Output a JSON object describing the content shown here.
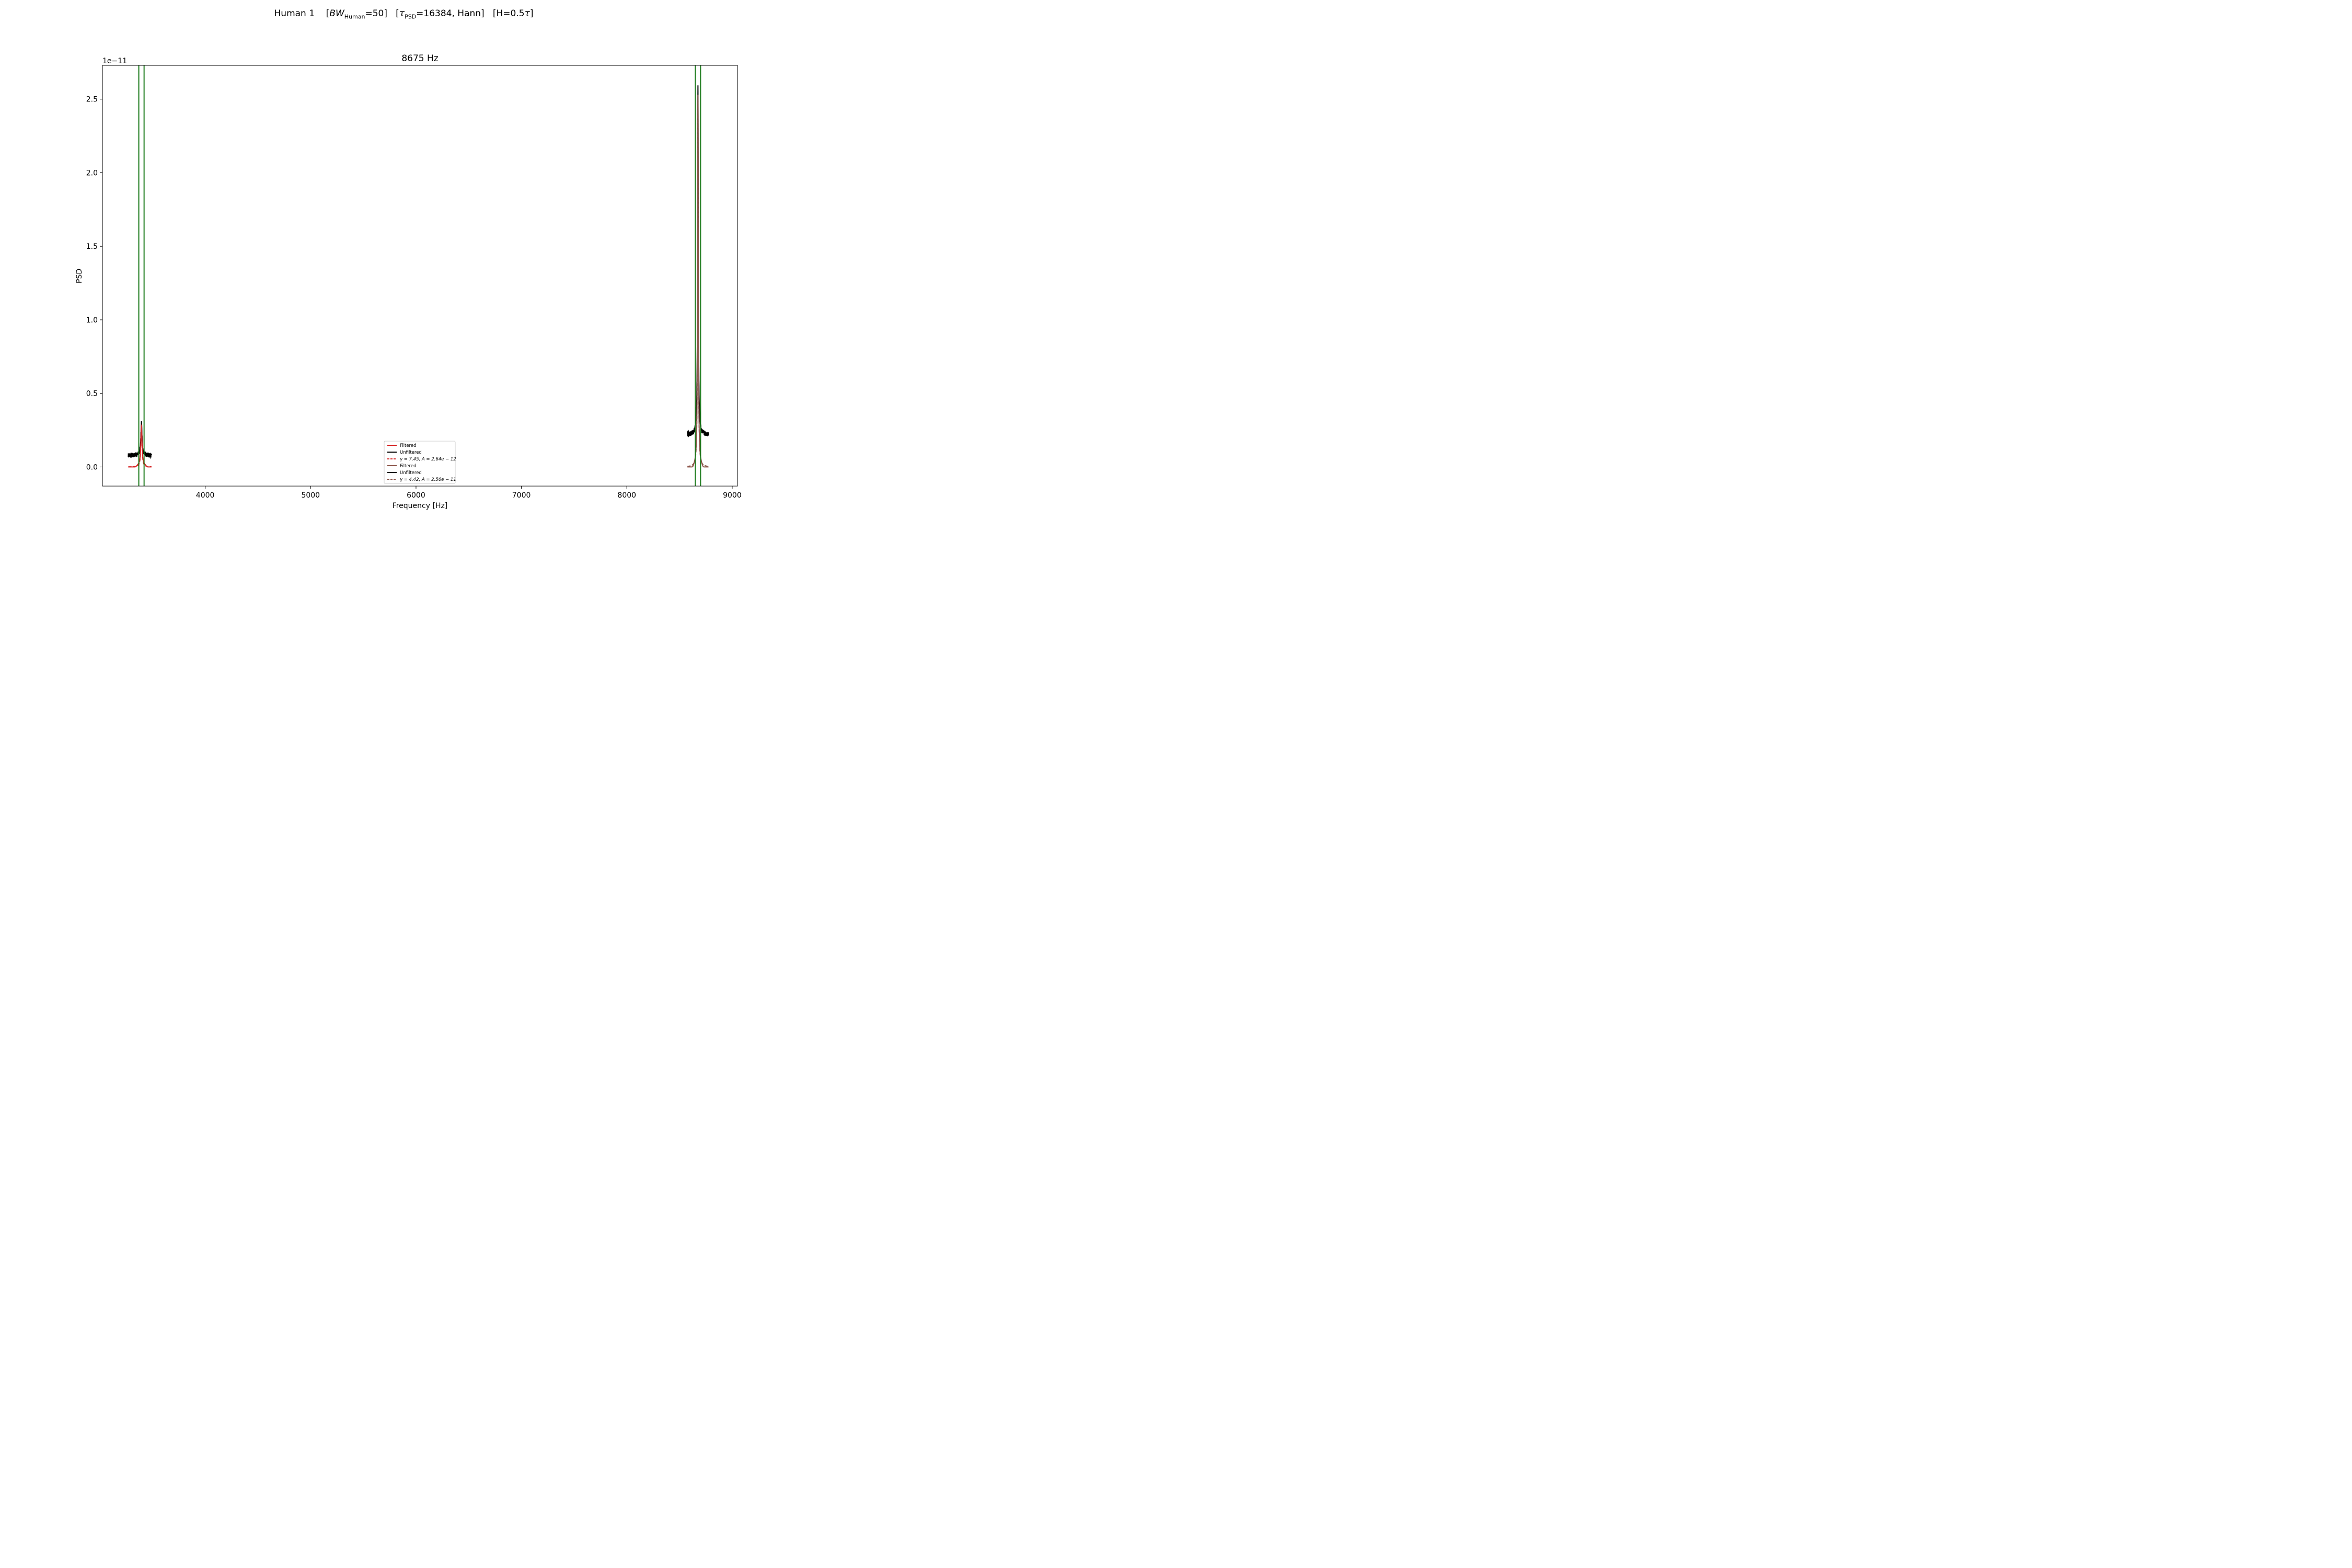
{
  "figure": {
    "suptitle": {
      "lead": "Human 1    [",
      "bw_symbol": "BW",
      "bw_sub": "Human",
      "bw_rest": "=50]   [",
      "tau_symbol": "τ",
      "tau_sub": "PSD",
      "tau_rest": "=16384, Hann]   [H=0.5",
      "tail_symbol": "τ",
      "tail_end": "]"
    }
  },
  "chart_data": {
    "type": "line",
    "title": "8675 Hz",
    "xlabel": "Frequency [Hz]",
    "ylabel": "PSD",
    "y_offset_label": "1e−11",
    "xlim": [
      3025,
      9050
    ],
    "ylim": [
      -0.13,
      2.73
    ],
    "y_scale": 1e-11,
    "xticks": [
      4000,
      5000,
      6000,
      7000,
      8000,
      9000
    ],
    "xtick_labels": [
      "4000",
      "5000",
      "6000",
      "7000",
      "8000",
      "9000"
    ],
    "yticks": [
      0.0,
      0.5,
      1.0,
      1.5,
      2.0,
      2.5
    ],
    "ytick_labels": [
      "0.0",
      "0.5",
      "1.0",
      "1.5",
      "2.0",
      "2.5"
    ],
    "grid": false,
    "legend_placement": "lower-center",
    "vertical_lines": {
      "color": "#1a7a1a",
      "x": [
        3370,
        3420,
        8650,
        8700
      ]
    },
    "peaks": [
      {
        "center": 3395,
        "range": [
          3270,
          3490
        ],
        "unfiltered_level": 0.08,
        "unfiltered_peak": 0.3,
        "filtered_peak": 0.27,
        "fit_gamma": 7.45,
        "fit_peak": 0.26
      },
      {
        "center": 8675,
        "range": [
          8575,
          8775
        ],
        "unfiltered_level": 0.22,
        "unfiltered_peak": 2.6,
        "filtered_peak": 2.52,
        "fit_gamma": 4.42,
        "fit_peak": 2.48
      }
    ],
    "series": [
      {
        "name": "Filtered",
        "color": "#d62728",
        "style": "solid",
        "peak": 0
      },
      {
        "name": "Unfiltered",
        "color": "#000000",
        "style": "solid",
        "peak": 0
      },
      {
        "name": "γ = 7.45, A = 2.64e − 12",
        "color": "#d62728",
        "style": "dashed",
        "peak": 0
      },
      {
        "name": "Filtered",
        "color": "#8c564b",
        "style": "solid",
        "peak": 1
      },
      {
        "name": "Unfiltered",
        "color": "#000000",
        "style": "solid",
        "peak": 1
      },
      {
        "name": "γ = 4.42, A = 2.56e − 11",
        "color": "#8c564b",
        "style": "dashed",
        "peak": 1
      }
    ]
  }
}
